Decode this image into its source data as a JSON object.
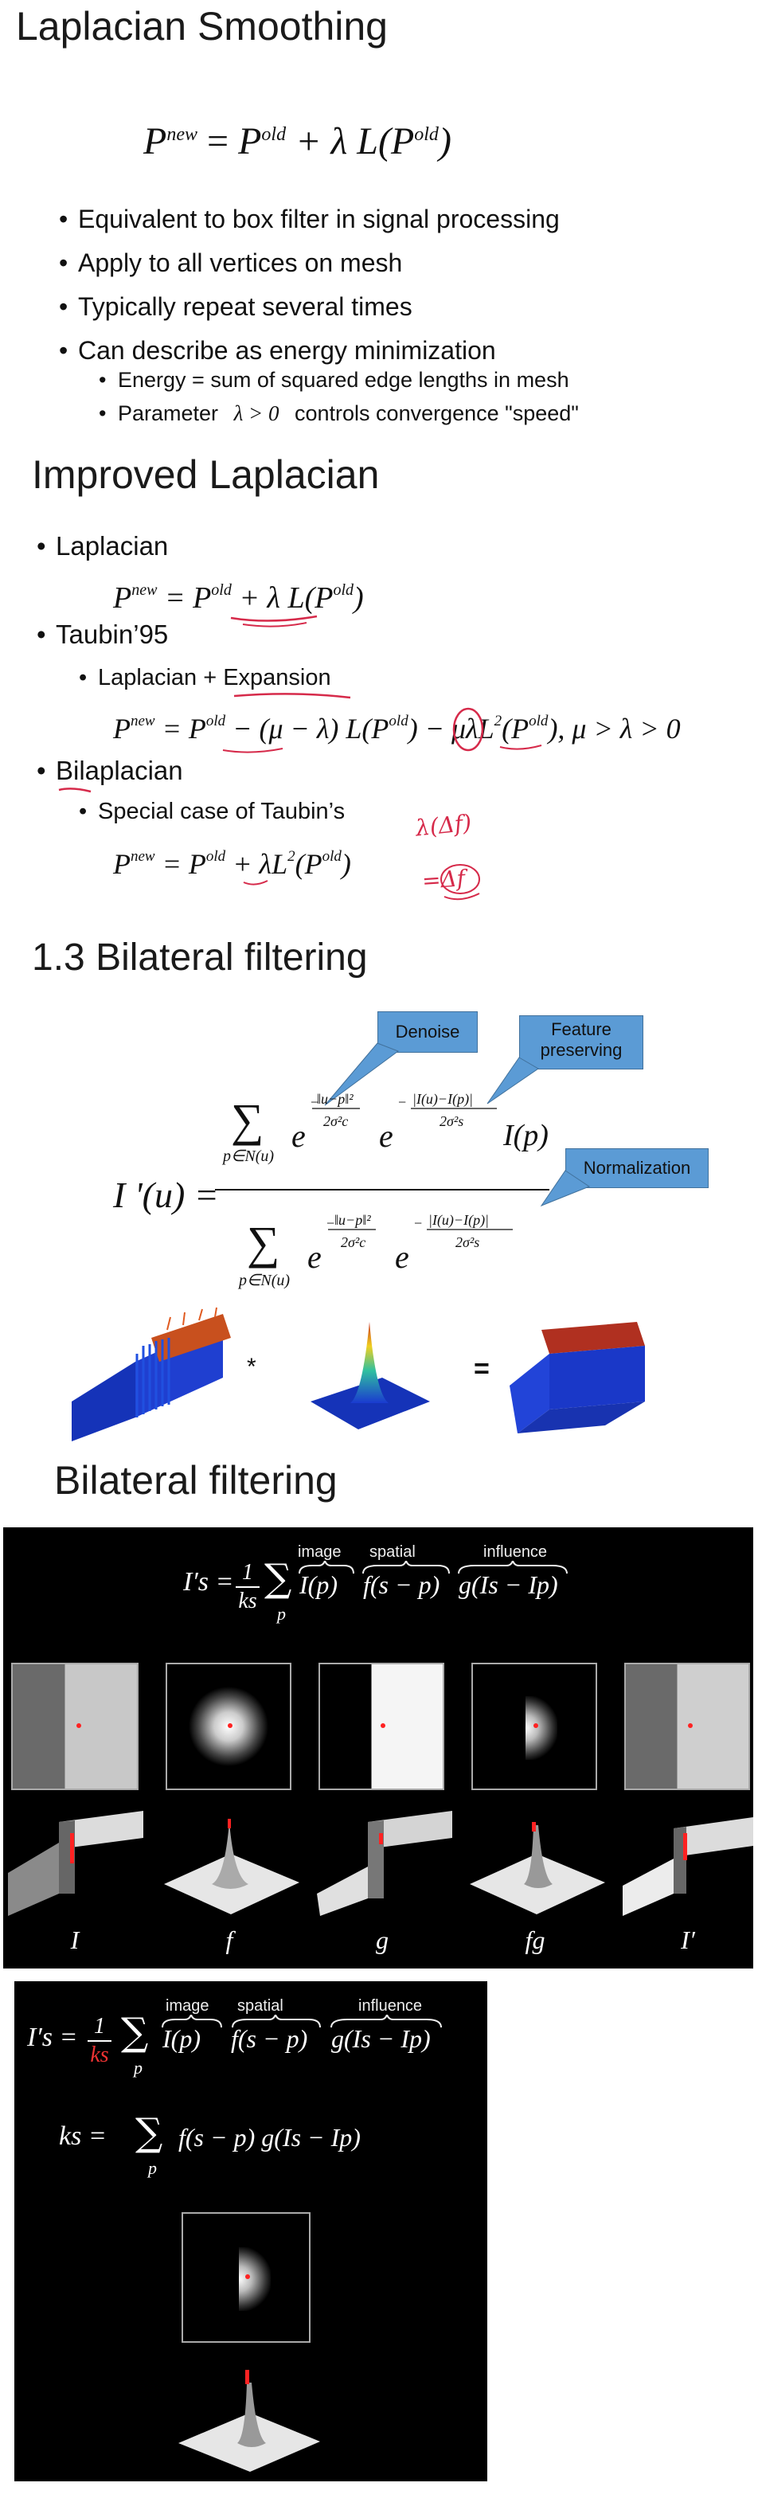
{
  "sec1": {
    "title": "Laplacian Smoothing",
    "eq": {
      "lhs": "P",
      "lhs_sup": "new",
      "eqs": " = ",
      "p": "P",
      "p_sup": "old",
      "plus": " + λ L(",
      "inner": "P",
      "inner_sup": "old",
      "close": ")"
    },
    "bullets": [
      "Equivalent to box filter in signal processing",
      "Apply to all vertices on mesh",
      "Typically repeat several times",
      "Can describe as energy minimization"
    ],
    "subbullets": [
      "Energy = sum of squared edge lengths in mesh",
      "Parameter",
      "λ > 0",
      "controls convergence \"speed\""
    ]
  },
  "sec2": {
    "title": "Improved Laplacian",
    "items": [
      "Laplacian",
      "Taubin’95",
      "Laplacian + Expansion",
      "Bilaplacian",
      "Special case of Taubin’s"
    ],
    "eq1": "P^new = P^old + λ L(P^old)",
    "eq2": "P^new = P^old − (μ − λ) L(P^old) − μλL²(P^old), μ > λ > 0",
    "eq3": "P^new = P^old + λL²(P^old)",
    "hand1": "λ(Δf)",
    "hand2": "=Δf"
  },
  "sec3": {
    "title": "1.3 Bilateral filtering",
    "callouts": [
      "Denoise",
      "Feature preserving",
      "Normalization"
    ],
    "lhs": "I '(u) =",
    "sum_sub": "p∈N(u)",
    "num_tail": "I(p)",
    "times": "*",
    "equals": "="
  },
  "sec4": {
    "title": "Bilateral filtering",
    "formula": {
      "lhs": "I′s = ",
      "frac_num": "1",
      "frac_den": "ks",
      "sum_sub": "p",
      "t1": "I(p)",
      "t2": "f(s − p)",
      "t3": "g(Is − Ip)"
    },
    "braces": [
      "image",
      "spatial",
      "influence"
    ],
    "captions": [
      "I",
      "f",
      "g",
      "fg",
      "I′"
    ]
  },
  "sec5": {
    "formula": {
      "lhs": "I′s = ",
      "frac_num": "1",
      "frac_den": "ks",
      "sum_sub": "p",
      "t1": "I(p)",
      "t2": "f(s − p)",
      "t3": "g(Is − Ip)"
    },
    "braces": [
      "image",
      "spatial",
      "influence"
    ],
    "ks_eq": "ks = ",
    "ks_sum_sub": "p",
    "ks_rhs": "f(s − p) g(Is − Ip)"
  },
  "colors": {
    "callout": "#5b9bd5",
    "handwriting": "#d62a4a",
    "marker": "#ff2020"
  }
}
